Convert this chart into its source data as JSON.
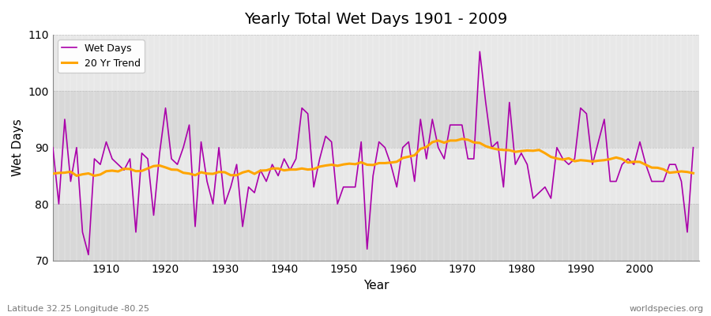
{
  "title": "Yearly Total Wet Days 1901 - 2009",
  "xlabel": "Year",
  "ylabel": "Wet Days",
  "footnote_left": "Latitude 32.25 Longitude -80.25",
  "footnote_right": "worldspecies.org",
  "legend_labels": [
    "Wet Days",
    "20 Yr Trend"
  ],
  "wet_days_color": "#aa00aa",
  "trend_color": "#ffa500",
  "background_color": "#e0e0e0",
  "band_color_light": "#e8e8e8",
  "band_color_dark": "#d8d8d8",
  "ylim": [
    70,
    110
  ],
  "yticks": [
    70,
    80,
    90,
    100,
    110
  ],
  "years": [
    1901,
    1902,
    1903,
    1904,
    1905,
    1906,
    1907,
    1908,
    1909,
    1910,
    1911,
    1912,
    1913,
    1914,
    1915,
    1916,
    1917,
    1918,
    1919,
    1920,
    1921,
    1922,
    1923,
    1924,
    1925,
    1926,
    1927,
    1928,
    1929,
    1930,
    1931,
    1932,
    1933,
    1934,
    1935,
    1936,
    1937,
    1938,
    1939,
    1940,
    1941,
    1942,
    1943,
    1944,
    1945,
    1946,
    1947,
    1948,
    1949,
    1950,
    1951,
    1952,
    1953,
    1954,
    1955,
    1956,
    1957,
    1958,
    1959,
    1960,
    1961,
    1962,
    1963,
    1964,
    1965,
    1966,
    1967,
    1968,
    1969,
    1970,
    1971,
    1972,
    1973,
    1974,
    1975,
    1976,
    1977,
    1978,
    1979,
    1980,
    1981,
    1982,
    1983,
    1984,
    1985,
    1986,
    1987,
    1988,
    1989,
    1990,
    1991,
    1992,
    1993,
    1994,
    1995,
    1996,
    1997,
    1998,
    1999,
    2000,
    2001,
    2002,
    2003,
    2004,
    2005,
    2006,
    2007,
    2008,
    2009
  ],
  "wet_days": [
    90,
    80,
    95,
    84,
    90,
    75,
    71,
    88,
    87,
    91,
    88,
    87,
    86,
    88,
    75,
    89,
    88,
    78,
    89,
    97,
    88,
    87,
    90,
    94,
    76,
    91,
    84,
    80,
    90,
    80,
    83,
    87,
    76,
    83,
    82,
    86,
    84,
    87,
    85,
    88,
    86,
    88,
    97,
    96,
    83,
    88,
    92,
    91,
    80,
    83,
    83,
    83,
    91,
    72,
    85,
    91,
    90,
    87,
    83,
    90,
    91,
    84,
    95,
    88,
    95,
    90,
    88,
    94,
    94,
    94,
    88,
    88,
    107,
    98,
    90,
    91,
    83,
    98,
    87,
    89,
    87,
    81,
    82,
    83,
    81,
    90,
    88,
    87,
    88,
    97,
    96,
    87,
    91,
    95,
    84,
    84,
    87,
    88,
    87,
    91,
    87,
    84,
    84,
    84,
    87,
    87,
    84,
    75,
    90
  ]
}
